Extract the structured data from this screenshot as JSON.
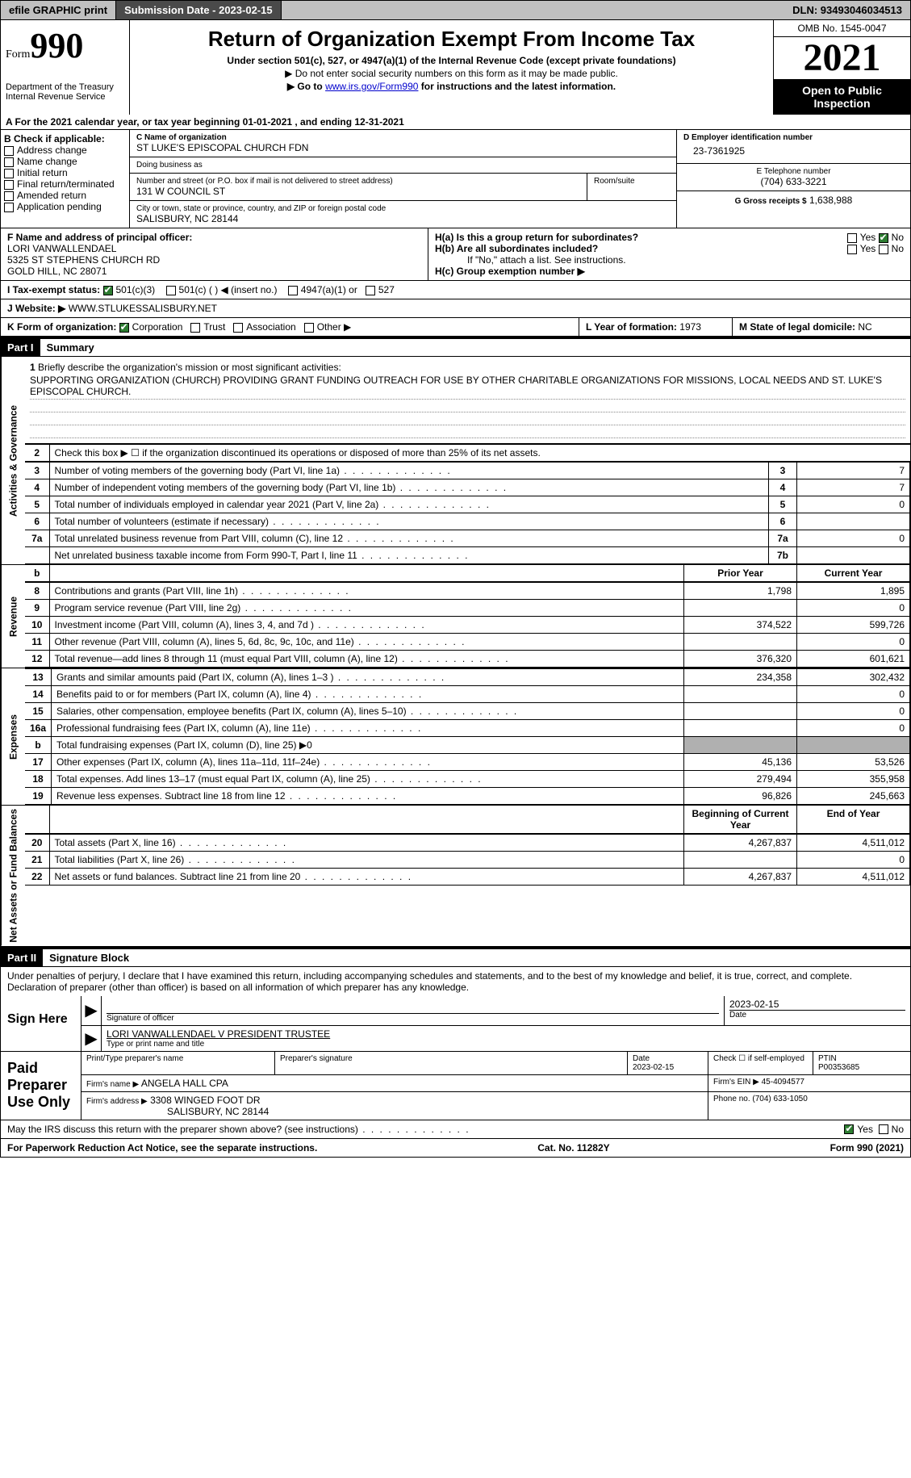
{
  "topbar": {
    "efile": "efile GRAPHIC print",
    "submission_label": "Submission Date - 2023-02-15",
    "dln": "DLN: 93493046034513"
  },
  "header": {
    "form_word": "Form",
    "form_num": "990",
    "title": "Return of Organization Exempt From Income Tax",
    "subtitle": "Under section 501(c), 527, or 4947(a)(1) of the Internal Revenue Code (except private foundations)",
    "note1": "▶ Do not enter social security numbers on this form as it may be made public.",
    "note2_pre": "▶ Go to ",
    "note2_link": "www.irs.gov/Form990",
    "note2_post": " for instructions and the latest information.",
    "dept": "Department of the Treasury\nInternal Revenue Service",
    "omb": "OMB No. 1545-0047",
    "year": "2021",
    "open": "Open to Public Inspection"
  },
  "sectionA": "A For the 2021 calendar year, or tax year beginning 01-01-2021    , and ending 12-31-2021",
  "B": {
    "label": "B Check if applicable:",
    "opts": [
      "Address change",
      "Name change",
      "Initial return",
      "Final return/terminated",
      "Amended return",
      "Application pending"
    ]
  },
  "C": {
    "name_label": "C Name of organization",
    "name": "ST LUKE'S EPISCOPAL CHURCH FDN",
    "dba_label": "Doing business as",
    "dba": "",
    "street_label": "Number and street (or P.O. box if mail is not delivered to street address)",
    "room_label": "Room/suite",
    "street": "131 W COUNCIL ST",
    "city_label": "City or town, state or province, country, and ZIP or foreign postal code",
    "city": "SALISBURY, NC  28144"
  },
  "D": {
    "label": "D Employer identification number",
    "value": "23-7361925"
  },
  "E": {
    "label": "E Telephone number",
    "value": "(704) 633-3221"
  },
  "G": {
    "label": "G Gross receipts $",
    "value": "1,638,988"
  },
  "F": {
    "label": "F Name and address of principal officer:",
    "name": "LORI VANWALLENDAEL",
    "addr1": "5325 ST STEPHENS CHURCH RD",
    "addr2": "GOLD HILL, NC  28071"
  },
  "H": {
    "a": "H(a)  Is this a group return for subordinates?",
    "b": "H(b)  Are all subordinates included?",
    "b_note": "If \"No,\" attach a list. See instructions.",
    "c": "H(c)  Group exemption number ▶",
    "yes": "Yes",
    "no": "No"
  },
  "I": {
    "label": "I    Tax-exempt status:",
    "o1": "501(c)(3)",
    "o2": "501(c) (  ) ◀ (insert no.)",
    "o3": "4947(a)(1) or",
    "o4": "527"
  },
  "J": {
    "label": "J   Website: ▶",
    "value": "WWW.STLUKESSALISBURY.NET"
  },
  "K": {
    "label": "K Form of organization:",
    "o1": "Corporation",
    "o2": "Trust",
    "o3": "Association",
    "o4": "Other ▶"
  },
  "L": {
    "label": "L Year of formation:",
    "value": "1973"
  },
  "M": {
    "label": "M State of legal domicile:",
    "value": "NC"
  },
  "part1": {
    "hdr": "Part I",
    "title": "Summary",
    "l1_label": "Briefly describe the organization's mission or most significant activities:",
    "l1_text": "SUPPORTING ORGANIZATION (CHURCH) PROVIDING GRANT FUNDING OUTREACH FOR USE BY OTHER CHARITABLE ORGANIZATIONS FOR MISSIONS, LOCAL NEEDS AND ST. LUKE'S EPISCOPAL CHURCH.",
    "l2": "Check this box ▶ ☐ if the organization discontinued its operations or disposed of more than 25% of its net assets.",
    "prior_year": "Prior Year",
    "current_year": "Current Year",
    "begin_year": "Beginning of Current Year",
    "end_year": "End of Year"
  },
  "sides": {
    "gov": "Activities & Governance",
    "rev": "Revenue",
    "exp": "Expenses",
    "net": "Net Assets or Fund Balances"
  },
  "lines_gov": [
    {
      "n": "3",
      "d": "Number of voting members of the governing body (Part VI, line 1a)",
      "lbl": "3",
      "v": "7"
    },
    {
      "n": "4",
      "d": "Number of independent voting members of the governing body (Part VI, line 1b)",
      "lbl": "4",
      "v": "7"
    },
    {
      "n": "5",
      "d": "Total number of individuals employed in calendar year 2021 (Part V, line 2a)",
      "lbl": "5",
      "v": "0"
    },
    {
      "n": "6",
      "d": "Total number of volunteers (estimate if necessary)",
      "lbl": "6",
      "v": ""
    },
    {
      "n": "7a",
      "d": "Total unrelated business revenue from Part VIII, column (C), line 12",
      "lbl": "7a",
      "v": "0"
    },
    {
      "n": "",
      "d": "Net unrelated business taxable income from Form 990-T, Part I, line 11",
      "lbl": "7b",
      "v": ""
    }
  ],
  "lines_rev": [
    {
      "n": "8",
      "d": "Contributions and grants (Part VIII, line 1h)",
      "py": "1,798",
      "cy": "1,895"
    },
    {
      "n": "9",
      "d": "Program service revenue (Part VIII, line 2g)",
      "py": "",
      "cy": "0"
    },
    {
      "n": "10",
      "d": "Investment income (Part VIII, column (A), lines 3, 4, and 7d )",
      "py": "374,522",
      "cy": "599,726"
    },
    {
      "n": "11",
      "d": "Other revenue (Part VIII, column (A), lines 5, 6d, 8c, 9c, 10c, and 11e)",
      "py": "",
      "cy": "0"
    },
    {
      "n": "12",
      "d": "Total revenue—add lines 8 through 11 (must equal Part VIII, column (A), line 12)",
      "py": "376,320",
      "cy": "601,621"
    }
  ],
  "lines_exp": [
    {
      "n": "13",
      "d": "Grants and similar amounts paid (Part IX, column (A), lines 1–3 )",
      "py": "234,358",
      "cy": "302,432"
    },
    {
      "n": "14",
      "d": "Benefits paid to or for members (Part IX, column (A), line 4)",
      "py": "",
      "cy": "0"
    },
    {
      "n": "15",
      "d": "Salaries, other compensation, employee benefits (Part IX, column (A), lines 5–10)",
      "py": "",
      "cy": "0"
    },
    {
      "n": "16a",
      "d": "Professional fundraising fees (Part IX, column (A), line 11e)",
      "py": "",
      "cy": "0"
    },
    {
      "n": "b",
      "d": "Total fundraising expenses (Part IX, column (D), line 25) ▶0",
      "py": "SHADE",
      "cy": "SHADE"
    },
    {
      "n": "17",
      "d": "Other expenses (Part IX, column (A), lines 11a–11d, 11f–24e)",
      "py": "45,136",
      "cy": "53,526"
    },
    {
      "n": "18",
      "d": "Total expenses. Add lines 13–17 (must equal Part IX, column (A), line 25)",
      "py": "279,494",
      "cy": "355,958"
    },
    {
      "n": "19",
      "d": "Revenue less expenses. Subtract line 18 from line 12",
      "py": "96,826",
      "cy": "245,663"
    }
  ],
  "lines_net": [
    {
      "n": "20",
      "d": "Total assets (Part X, line 16)",
      "py": "4,267,837",
      "cy": "4,511,012"
    },
    {
      "n": "21",
      "d": "Total liabilities (Part X, line 26)",
      "py": "",
      "cy": "0"
    },
    {
      "n": "22",
      "d": "Net assets or fund balances. Subtract line 21 from line 20",
      "py": "4,267,837",
      "cy": "4,511,012"
    }
  ],
  "part2": {
    "hdr": "Part II",
    "title": "Signature Block",
    "decl": "Under penalties of perjury, I declare that I have examined this return, including accompanying schedules and statements, and to the best of my knowledge and belief, it is true, correct, and complete. Declaration of preparer (other than officer) is based on all information of which preparer has any knowledge."
  },
  "sign": {
    "here": "Sign Here",
    "sig_officer": "Signature of officer",
    "date": "Date",
    "date_val": "2023-02-15",
    "name_title": "LORI VANWALLENDAEL  V PRESIDENT TRUSTEE",
    "type_name": "Type or print name and title"
  },
  "paid": {
    "label": "Paid Preparer Use Only",
    "print_label": "Print/Type preparer's name",
    "sig_label": "Preparer's signature",
    "date_label": "Date",
    "date_val": "2023-02-15",
    "check_label": "Check ☐ if self-employed",
    "ptin_label": "PTIN",
    "ptin": "P00353685",
    "firm_name_label": "Firm's name    ▶",
    "firm_name": "ANGELA HALL CPA",
    "firm_ein_label": "Firm's EIN ▶",
    "firm_ein": "45-4094577",
    "firm_addr_label": "Firm's address ▶",
    "firm_addr1": "3308 WINGED FOOT DR",
    "firm_addr2": "SALISBURY, NC  28144",
    "phone_label": "Phone no.",
    "phone": "(704) 633-1050"
  },
  "discuss": "May the IRS discuss this return with the preparer shown above? (see instructions)",
  "footer": {
    "left": "For Paperwork Reduction Act Notice, see the separate instructions.",
    "mid": "Cat. No. 11282Y",
    "right": "Form 990 (2021)"
  }
}
